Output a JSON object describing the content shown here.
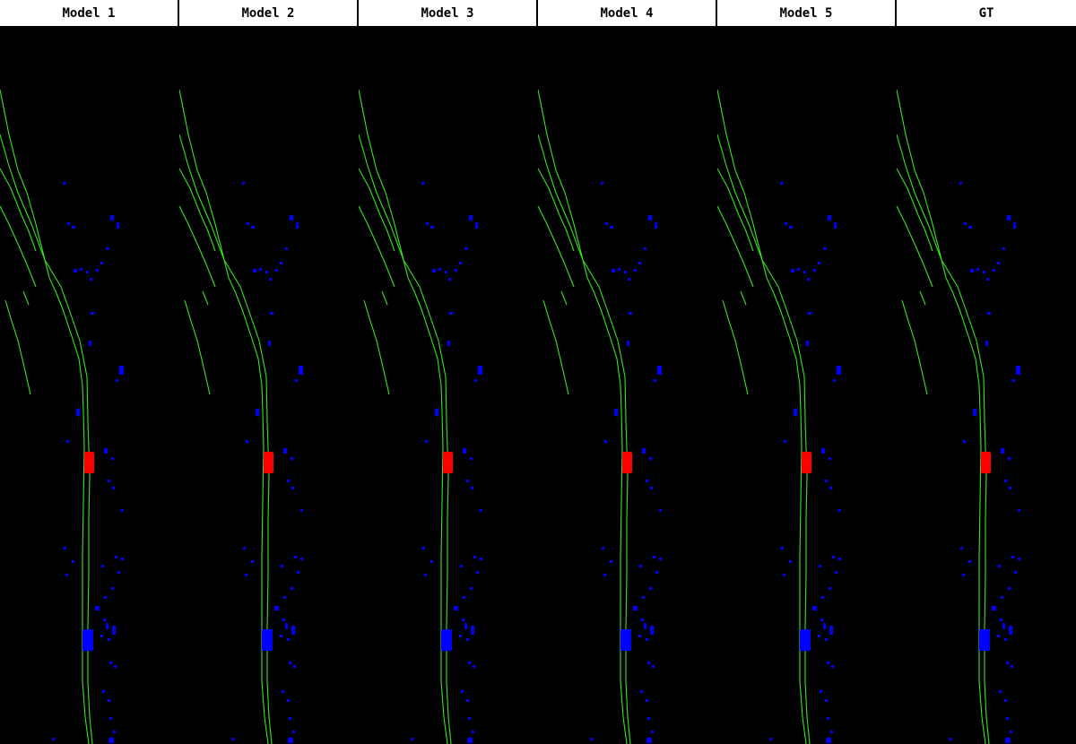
{
  "panels": [
    {
      "label": "Model 1"
    },
    {
      "label": "Model 2"
    },
    {
      "label": "Model 3"
    },
    {
      "label": "Model 4"
    },
    {
      "label": "Model 5"
    },
    {
      "label": "GT"
    }
  ],
  "colors": {
    "background": "#000000",
    "header_bg": "#ffffff",
    "header_text": "#000000",
    "lane": "#33e61a",
    "ego_vehicle": "#ff0000",
    "agent": "#0000ff"
  }
}
